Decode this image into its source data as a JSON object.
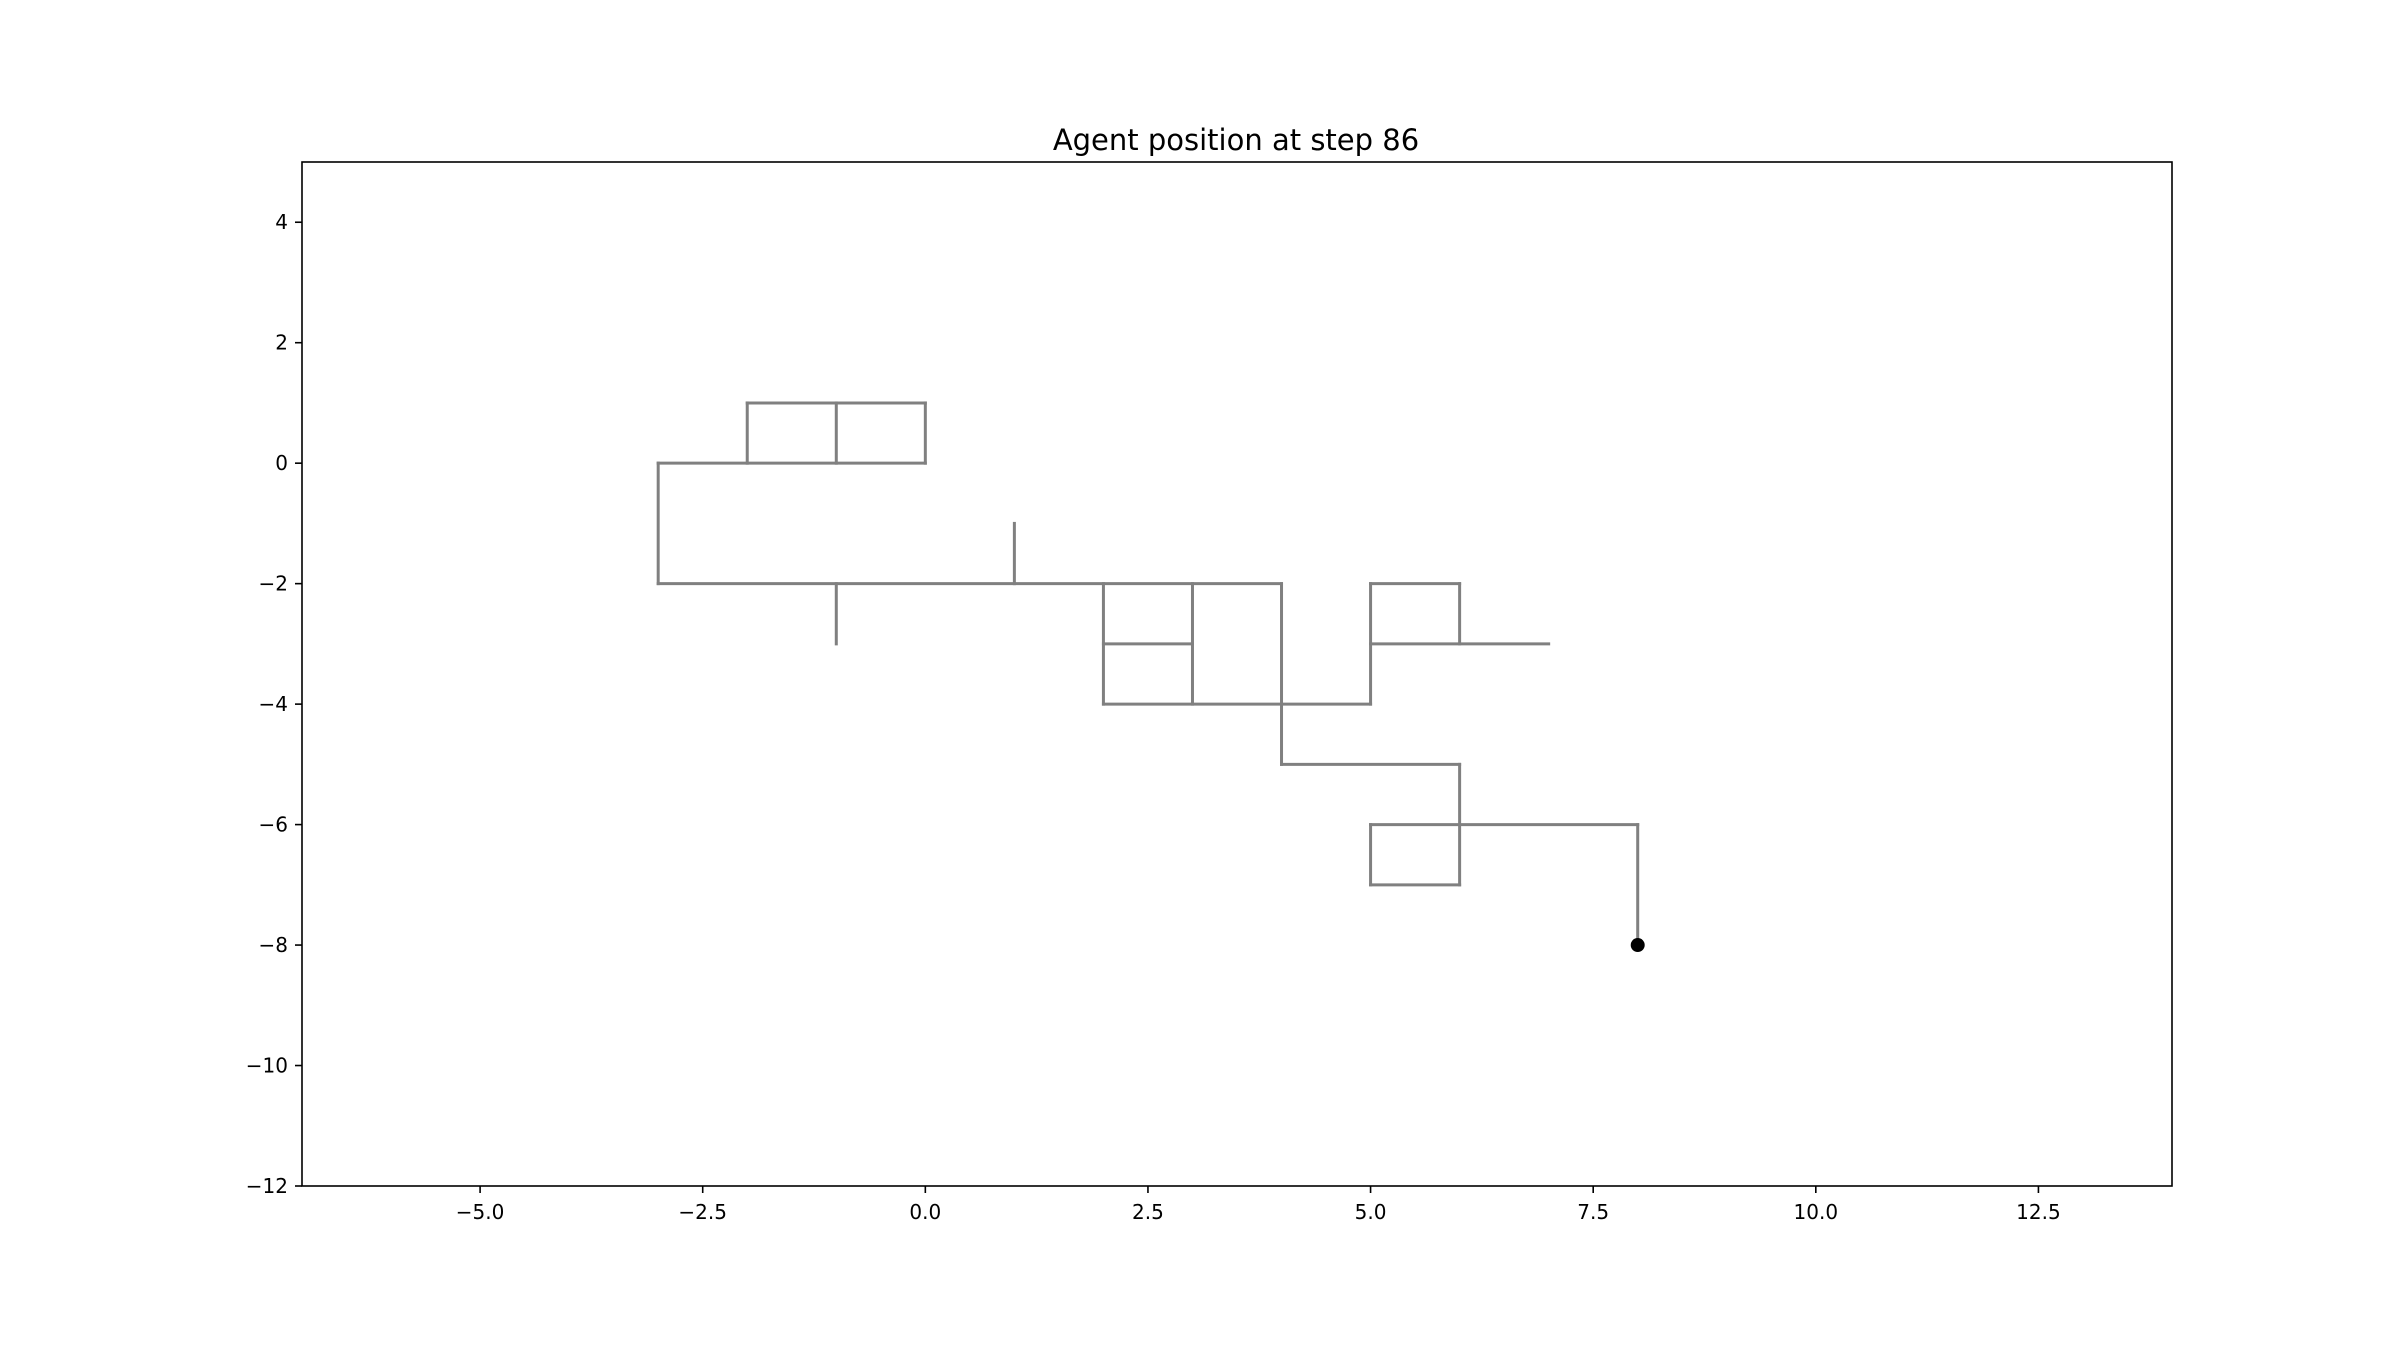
{
  "chart_data": {
    "type": "line",
    "title": "Agent position at step 86",
    "xlabel": "",
    "ylabel": "",
    "xlim": [
      -7,
      14
    ],
    "ylim": [
      -12,
      5
    ],
    "x_ticks": [
      -5.0,
      -2.5,
      0.0,
      2.5,
      5.0,
      7.5,
      10.0,
      12.5
    ],
    "x_tick_labels": [
      "−5.0",
      "−2.5",
      "0.0",
      "2.5",
      "5.0",
      "7.5",
      "10.0",
      "12.5"
    ],
    "y_ticks": [
      4,
      2,
      0,
      -2,
      -4,
      -6,
      -8,
      -10,
      -12
    ],
    "y_tick_labels": [
      "4",
      "2",
      "0",
      "−2",
      "−4",
      "−6",
      "−8",
      "−10",
      "−12"
    ],
    "grid": false,
    "series": [
      {
        "segments": [
          [
            [
              -3,
              0
            ],
            [
              0,
              0
            ]
          ],
          [
            [
              -3,
              0
            ],
            [
              -3,
              -2
            ]
          ],
          [
            [
              -2,
              0
            ],
            [
              -2,
              1
            ]
          ],
          [
            [
              -2,
              1
            ],
            [
              0,
              1
            ]
          ],
          [
            [
              -1,
              0
            ],
            [
              -1,
              1
            ]
          ],
          [
            [
              0,
              0
            ],
            [
              0,
              1
            ]
          ],
          [
            [
              -3,
              -2
            ],
            [
              4,
              -2
            ]
          ],
          [
            [
              -1,
              -2
            ],
            [
              -1,
              -3
            ]
          ],
          [
            [
              1,
              -2
            ],
            [
              1,
              -1
            ]
          ],
          [
            [
              2,
              -2
            ],
            [
              2,
              -4
            ]
          ],
          [
            [
              2,
              -3
            ],
            [
              3,
              -3
            ]
          ],
          [
            [
              3,
              -2
            ],
            [
              3,
              -4
            ]
          ],
          [
            [
              4,
              -2
            ],
            [
              4,
              -5
            ]
          ],
          [
            [
              2,
              -4
            ],
            [
              5,
              -4
            ]
          ],
          [
            [
              5,
              -4
            ],
            [
              5,
              -2
            ]
          ],
          [
            [
              5,
              -2
            ],
            [
              6,
              -2
            ]
          ],
          [
            [
              6,
              -2
            ],
            [
              6,
              -3
            ]
          ],
          [
            [
              5,
              -3
            ],
            [
              7,
              -3
            ]
          ],
          [
            [
              4,
              -5
            ],
            [
              6,
              -5
            ]
          ],
          [
            [
              6,
              -5
            ],
            [
              6,
              -7
            ]
          ],
          [
            [
              5,
              -6
            ],
            [
              8,
              -6
            ]
          ],
          [
            [
              5,
              -6
            ],
            [
              5,
              -7
            ]
          ],
          [
            [
              5,
              -7
            ],
            [
              6,
              -7
            ]
          ],
          [
            [
              8,
              -6
            ],
            [
              8,
              -8
            ]
          ]
        ]
      }
    ],
    "agent": {
      "x": 8,
      "y": -8
    },
    "colors": {
      "path": "#808080",
      "agent": "#000000",
      "axes": "#000000"
    }
  }
}
